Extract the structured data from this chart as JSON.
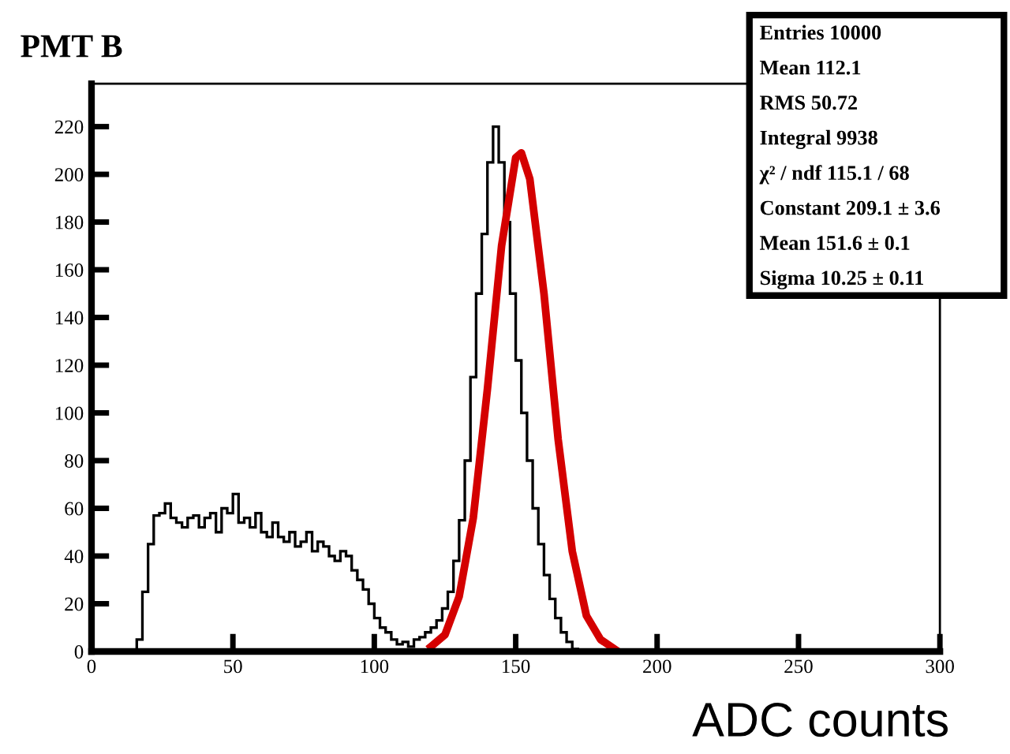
{
  "chart_data": {
    "type": "histogram",
    "title": "PMT B",
    "xlabel": "ADC counts",
    "xlim": [
      0,
      300
    ],
    "xticks": [
      0,
      50,
      100,
      150,
      200,
      250,
      300
    ],
    "ylim": [
      0,
      238
    ],
    "yticks": [
      0,
      20,
      40,
      60,
      80,
      100,
      120,
      140,
      160,
      180,
      200,
      220
    ],
    "grid": false,
    "series": [
      {
        "color": "#000000",
        "bins": [
          14,
          16,
          18,
          20,
          22,
          24,
          26,
          28,
          30,
          32,
          34,
          36,
          38,
          40,
          42,
          44,
          46,
          48,
          50,
          52,
          54,
          56,
          58,
          60,
          62,
          64,
          66,
          68,
          70,
          72,
          74,
          76,
          78,
          80,
          82,
          84,
          86,
          88,
          90,
          92,
          94,
          96,
          98,
          100,
          102,
          104,
          106,
          108,
          110,
          112,
          114,
          116,
          118,
          120,
          122,
          124,
          126,
          128,
          130,
          132,
          134,
          136,
          138,
          140,
          142,
          144,
          146,
          148,
          150,
          152,
          154,
          156,
          158,
          160,
          162,
          164,
          166,
          168,
          170,
          172
        ],
        "values": [
          0,
          5,
          25,
          45,
          57,
          58,
          62,
          56,
          54,
          52,
          56,
          57,
          52,
          56,
          58,
          50,
          60,
          58,
          66,
          54,
          56,
          52,
          58,
          50,
          48,
          54,
          48,
          46,
          50,
          44,
          46,
          50,
          42,
          46,
          44,
          40,
          38,
          42,
          40,
          34,
          30,
          26,
          20,
          14,
          10,
          8,
          5,
          3,
          4,
          2,
          5,
          6,
          8,
          10,
          13,
          18,
          25,
          38,
          55,
          80,
          115,
          150,
          175,
          205,
          220,
          205,
          180,
          150,
          122,
          100,
          80,
          60,
          45,
          32,
          22,
          14,
          8,
          4,
          1
        ]
      },
      {
        "type": "line",
        "color": "#d40000",
        "x": [
          120,
          125,
          130,
          135,
          140,
          145,
          150,
          152,
          155,
          160,
          165,
          170,
          175,
          180,
          185
        ],
        "values": [
          2,
          7,
          23,
          56,
          110,
          170,
          207,
          209,
          198,
          150,
          89,
          42,
          15,
          5,
          1
        ]
      }
    ],
    "annotations": [
      "Entries 10000",
      "Mean 112.1",
      "RMS 50.72",
      "Integral 9938",
      "χ² / ndf 115.1 / 68",
      "Constant 209.1 ± 3.6",
      "Mean 151.6 ± 0.1",
      "Sigma 10.25 ± 0.11"
    ]
  }
}
